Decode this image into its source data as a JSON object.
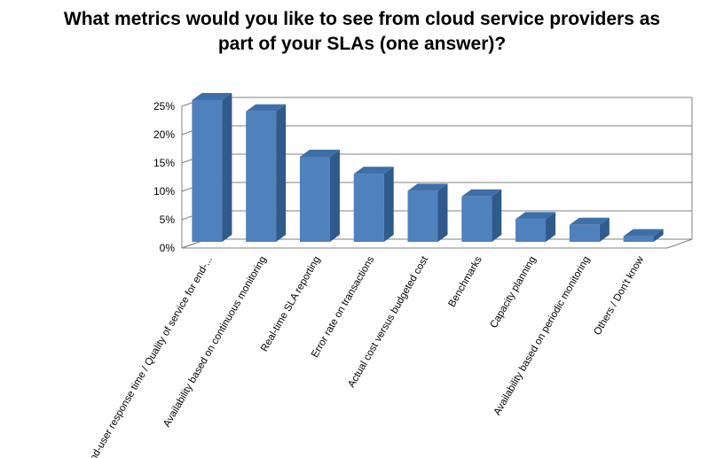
{
  "chart_data": {
    "type": "bar",
    "title_lines": [
      "What metrics would you like to see from cloud service providers as",
      "part of your SLAs (one answer)?"
    ],
    "categories": [
      "End-user response time / Quality of service for end-...",
      "Availability based on continuous monitoring",
      "Real-time SLA reporting",
      "Error rate on transactions",
      "Actual cost versus budgeted cost",
      "Benchmarks",
      "Capacity planning",
      "Availability based on periodic monitoring",
      "Others / Don't know"
    ],
    "values": [
      25,
      23,
      15,
      12,
      9,
      8,
      4,
      3,
      1
    ],
    "value_format": "percent",
    "yticks": [
      "0%",
      "5%",
      "10%",
      "15%",
      "20%",
      "25%"
    ],
    "ylim": [
      0,
      25
    ],
    "grid": true,
    "legend": "none",
    "colors": {
      "bar_front": "#4F81BD",
      "bar_side": "#2F5A8C",
      "bar_top": "#3E6FA8",
      "grid": "#808080"
    }
  }
}
